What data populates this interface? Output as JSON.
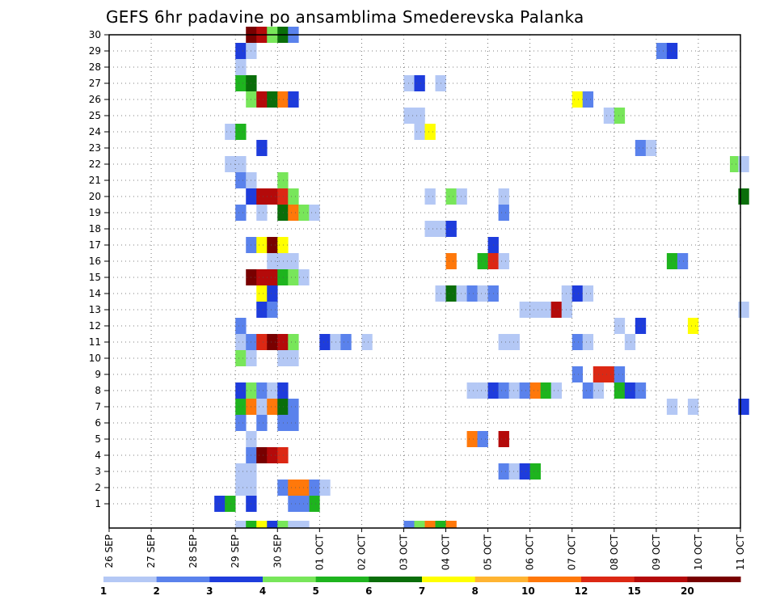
{
  "chart_data": {
    "type": "heatmap",
    "title": "GEFS 6hr padavine po ansamblima Smederevska Palanka",
    "xlabel": "",
    "ylabel": "",
    "x_tick_labels": [
      "26 SEP",
      "27 SEP",
      "28 SEP",
      "29 SEP",
      "30 SEP",
      "01 OCT",
      "02 OCT",
      "03 OCT",
      "04 OCT",
      "05 OCT",
      "06 OCT",
      "07 OCT",
      "08 OCT",
      "09 OCT",
      "10 OCT",
      "11 OCT"
    ],
    "x_range_days": [
      0,
      15
    ],
    "y_tick_labels": [
      "1",
      "2",
      "3",
      "4",
      "5",
      "6",
      "7",
      "8",
      "9",
      "10",
      "11",
      "12",
      "13",
      "14",
      "15",
      "16",
      "17",
      "18",
      "19",
      "20",
      "21",
      "22",
      "23",
      "24",
      "25",
      "26",
      "27",
      "28",
      "29",
      "30"
    ],
    "y_range": [
      0,
      30
    ],
    "grid": true,
    "colorbar": {
      "labels": [
        "1",
        "2",
        "3",
        "4",
        "5",
        "6",
        "7",
        "8",
        "10",
        "12",
        "15",
        "20"
      ],
      "colors": [
        "#b4c8f5",
        "#5a82ec",
        "#1e3cdc",
        "#78e65a",
        "#1eb41e",
        "#0a6e0a",
        "#ffff00",
        "#ffb432",
        "#ff780a",
        "#dc2814",
        "#b40a0a",
        "#780000"
      ]
    },
    "cells": [
      [
        0,
        2.5,
        3
      ],
      [
        0,
        2.75,
        5
      ],
      [
        0,
        3.25,
        3
      ],
      [
        0,
        4.25,
        2
      ],
      [
        0,
        4.5,
        2
      ],
      [
        0,
        4.75,
        5
      ],
      [
        0,
        4.5,
        2
      ],
      [
        1,
        3.0,
        1
      ],
      [
        1,
        3.25,
        1
      ],
      [
        1,
        4.0,
        2
      ],
      [
        1,
        4.25,
        9
      ],
      [
        1,
        4.5,
        9
      ],
      [
        1,
        4.75,
        2
      ],
      [
        1,
        5.0,
        1
      ],
      [
        2,
        3.0,
        1
      ],
      [
        2,
        3.25,
        1
      ],
      [
        2,
        9.25,
        2
      ],
      [
        2,
        9.5,
        1
      ],
      [
        2,
        9.75,
        3
      ],
      [
        2,
        10.0,
        5
      ],
      [
        3,
        3.25,
        2
      ],
      [
        3,
        3.5,
        12
      ],
      [
        3,
        3.75,
        11
      ],
      [
        3,
        4.0,
        10
      ],
      [
        4,
        3.25,
        1
      ],
      [
        4,
        8.5,
        9
      ],
      [
        4,
        8.75,
        2
      ],
      [
        4,
        9.25,
        11
      ],
      [
        5,
        3.0,
        2
      ],
      [
        5,
        3.5,
        2
      ],
      [
        5,
        4.0,
        2
      ],
      [
        5,
        4.25,
        2
      ],
      [
        6,
        3.0,
        5
      ],
      [
        6,
        3.25,
        9
      ],
      [
        6,
        3.5,
        1
      ],
      [
        6,
        3.75,
        9
      ],
      [
        6,
        4.0,
        6
      ],
      [
        6,
        4.25,
        2
      ],
      [
        6,
        13.25,
        1
      ],
      [
        6,
        13.75,
        1
      ],
      [
        6,
        14.95,
        3
      ],
      [
        7,
        3.0,
        3
      ],
      [
        7,
        3.25,
        4
      ],
      [
        7,
        3.5,
        2
      ],
      [
        7,
        3.75,
        1
      ],
      [
        7,
        4.0,
        3
      ],
      [
        7,
        8.5,
        1
      ],
      [
        7,
        8.75,
        1
      ],
      [
        7,
        9.0,
        3
      ],
      [
        7,
        9.25,
        2
      ],
      [
        7,
        9.5,
        1
      ],
      [
        7,
        9.75,
        2
      ],
      [
        7,
        10.0,
        9
      ],
      [
        7,
        10.25,
        5
      ],
      [
        7,
        10.5,
        1
      ],
      [
        7,
        11.25,
        2
      ],
      [
        7,
        11.5,
        1
      ],
      [
        7,
        12.0,
        5
      ],
      [
        7,
        12.25,
        3
      ],
      [
        7,
        12.5,
        2
      ],
      [
        8,
        11.0,
        2
      ],
      [
        8,
        11.5,
        10
      ],
      [
        8,
        11.75,
        10
      ],
      [
        8,
        12.0,
        2
      ],
      [
        9,
        3.0,
        4
      ],
      [
        9,
        3.25,
        1
      ],
      [
        9,
        4.0,
        1
      ],
      [
        9,
        4.25,
        1
      ],
      [
        10,
        3.0,
        1
      ],
      [
        10,
        3.25,
        2
      ],
      [
        10,
        3.5,
        10
      ],
      [
        10,
        3.75,
        12
      ],
      [
        10,
        4.0,
        11
      ],
      [
        10,
        4.25,
        4
      ],
      [
        10,
        5.0,
        3
      ],
      [
        10,
        5.25,
        1
      ],
      [
        10,
        5.5,
        2
      ],
      [
        10,
        6.0,
        1
      ],
      [
        10,
        9.25,
        1
      ],
      [
        10,
        9.5,
        1
      ],
      [
        10,
        11.0,
        2
      ],
      [
        10,
        11.25,
        1
      ],
      [
        10,
        12.25,
        1
      ],
      [
        11,
        3.0,
        2
      ],
      [
        11,
        12.0,
        1
      ],
      [
        11,
        12.5,
        3
      ],
      [
        11,
        13.75,
        7
      ],
      [
        12,
        3.5,
        3
      ],
      [
        12,
        3.75,
        2
      ],
      [
        12,
        9.75,
        1
      ],
      [
        12,
        10.0,
        1
      ],
      [
        12,
        10.25,
        1
      ],
      [
        12,
        10.5,
        11
      ],
      [
        12,
        10.75,
        1
      ],
      [
        12,
        14.95,
        1
      ],
      [
        13,
        3.5,
        7
      ],
      [
        13,
        3.75,
        3
      ],
      [
        13,
        7.75,
        1
      ],
      [
        13,
        8.0,
        6
      ],
      [
        13,
        8.25,
        1
      ],
      [
        13,
        8.5,
        2
      ],
      [
        13,
        8.75,
        1
      ],
      [
        13,
        9.0,
        2
      ],
      [
        13,
        10.75,
        1
      ],
      [
        13,
        11.0,
        3
      ],
      [
        13,
        11.25,
        1
      ],
      [
        14,
        3.25,
        12
      ],
      [
        14,
        3.5,
        11
      ],
      [
        14,
        3.75,
        11
      ],
      [
        14,
        4.0,
        5
      ],
      [
        14,
        4.25,
        4
      ],
      [
        14,
        4.5,
        1
      ],
      [
        15,
        3.75,
        1
      ],
      [
        15,
        4.0,
        1
      ],
      [
        15,
        4.25,
        1
      ],
      [
        15,
        8.0,
        9
      ],
      [
        15,
        8.75,
        5
      ],
      [
        15,
        9.0,
        10
      ],
      [
        15,
        9.25,
        1
      ],
      [
        15,
        13.25,
        5
      ],
      [
        15,
        13.5,
        2
      ],
      [
        16,
        3.25,
        2
      ],
      [
        16,
        3.5,
        7
      ],
      [
        16,
        3.75,
        12
      ],
      [
        16,
        4.0,
        7
      ],
      [
        16,
        9.0,
        3
      ],
      [
        17,
        7.5,
        1
      ],
      [
        17,
        7.75,
        1
      ],
      [
        17,
        8.0,
        3
      ],
      [
        18,
        3.0,
        2
      ],
      [
        18,
        3.5,
        1
      ],
      [
        18,
        4.0,
        6
      ],
      [
        18,
        4.25,
        9
      ],
      [
        18,
        4.5,
        4
      ],
      [
        18,
        4.75,
        1
      ],
      [
        18,
        9.25,
        2
      ],
      [
        19,
        3.25,
        3
      ],
      [
        19,
        3.5,
        11
      ],
      [
        19,
        3.75,
        11
      ],
      [
        19,
        4.0,
        10
      ],
      [
        19,
        4.25,
        4
      ],
      [
        19,
        7.5,
        1
      ],
      [
        19,
        8.0,
        4
      ],
      [
        19,
        8.25,
        1
      ],
      [
        19,
        9.25,
        1
      ],
      [
        19,
        14.95,
        6
      ],
      [
        20,
        3.0,
        2
      ],
      [
        20,
        3.25,
        1
      ],
      [
        20,
        4.0,
        4
      ],
      [
        21,
        2.75,
        1
      ],
      [
        21,
        3.0,
        1
      ],
      [
        21,
        14.75,
        4
      ],
      [
        21,
        14.95,
        1
      ],
      [
        22,
        3.5,
        3
      ],
      [
        22,
        12.5,
        2
      ],
      [
        22,
        12.75,
        1
      ],
      [
        23,
        2.75,
        1
      ],
      [
        23,
        3.0,
        5
      ],
      [
        23,
        7.25,
        1
      ],
      [
        23,
        7.5,
        7
      ],
      [
        24,
        7.0,
        1
      ],
      [
        24,
        7.25,
        1
      ],
      [
        24,
        11.75,
        1
      ],
      [
        24,
        12.0,
        4
      ],
      [
        25,
        3.25,
        4
      ],
      [
        25,
        3.5,
        11
      ],
      [
        25,
        3.75,
        6
      ],
      [
        25,
        4.0,
        9
      ],
      [
        25,
        4.25,
        3
      ],
      [
        25,
        11.0,
        7
      ],
      [
        25,
        11.25,
        2
      ],
      [
        26,
        3.0,
        5
      ],
      [
        26,
        3.25,
        6
      ],
      [
        26,
        7.0,
        1
      ],
      [
        26,
        7.25,
        3
      ],
      [
        26,
        7.75,
        1
      ],
      [
        27,
        3.0,
        1
      ],
      [
        28,
        3.0,
        3
      ],
      [
        28,
        3.25,
        1
      ],
      [
        28,
        13.0,
        2
      ],
      [
        28,
        13.25,
        3
      ],
      [
        29,
        3.25,
        12
      ],
      [
        29,
        3.5,
        11
      ],
      [
        29,
        3.75,
        4
      ],
      [
        29,
        4.0,
        6
      ],
      [
        29,
        4.25,
        2
      ],
      [
        -1,
        3.0,
        1
      ],
      [
        -1,
        3.25,
        5
      ],
      [
        -1,
        3.5,
        7
      ],
      [
        -1,
        3.75,
        3
      ],
      [
        -1,
        4.0,
        4
      ],
      [
        -1,
        7.0,
        2
      ],
      [
        -1,
        7.25,
        4
      ],
      [
        -1,
        7.5,
        9
      ],
      [
        -1,
        7.75,
        5
      ],
      [
        -1,
        8.0,
        9
      ],
      [
        -1,
        4.25,
        1
      ],
      [
        -1,
        4.5,
        1
      ]
    ]
  }
}
